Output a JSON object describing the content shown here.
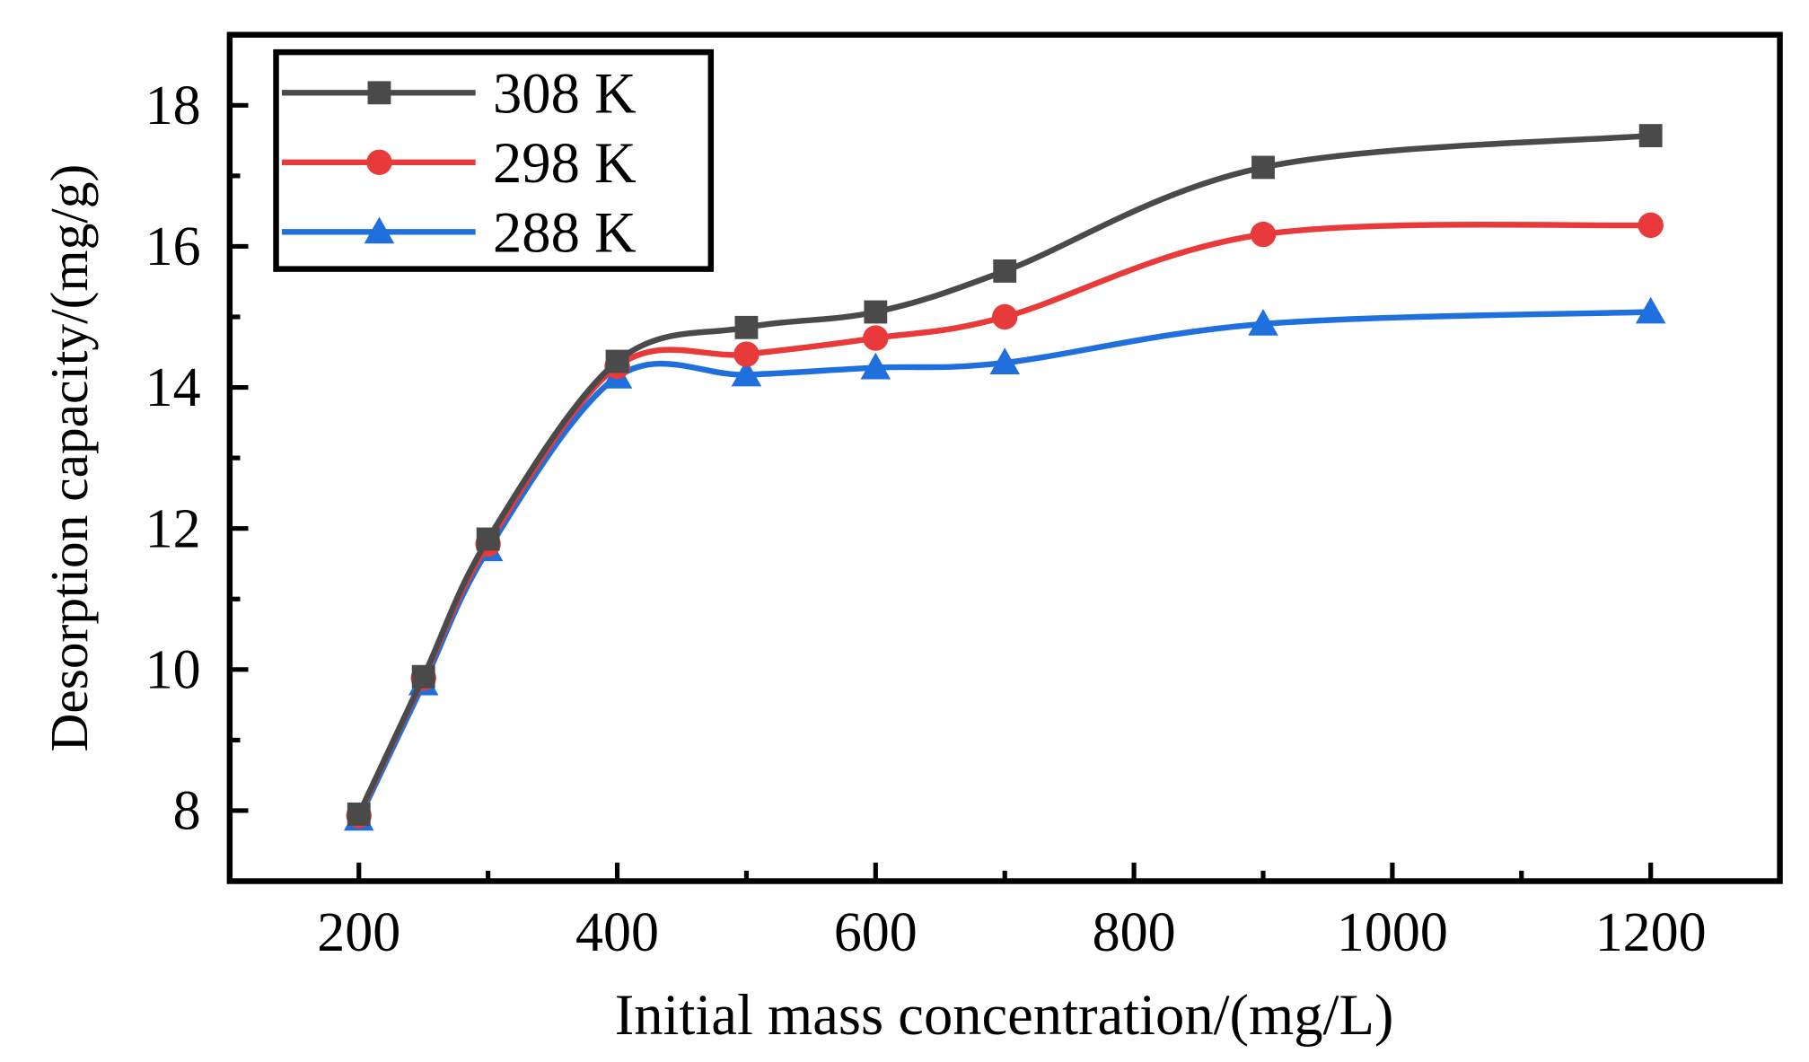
{
  "chart_data": {
    "type": "line",
    "title": "",
    "xlabel": "Initial mass concentration/(mg/L)",
    "ylabel": "Desorption capacity/(mg/g)",
    "xlim": [
      100,
      1300
    ],
    "ylim": [
      7,
      19
    ],
    "xticks": [
      200,
      400,
      600,
      800,
      1000,
      1200
    ],
    "yticks": [
      8,
      10,
      12,
      14,
      16,
      18
    ],
    "grid": false,
    "legend_position": "top-left",
    "x": [
      200,
      250,
      300,
      400,
      500,
      600,
      700,
      900,
      1200
    ],
    "series": [
      {
        "name": "308 K",
        "color": "#4a4a4a",
        "marker": "square",
        "values": [
          7.95,
          9.9,
          11.85,
          14.37,
          14.85,
          15.07,
          15.65,
          17.12,
          17.57
        ]
      },
      {
        "name": "298 K",
        "color": "#e83a3a",
        "marker": "circle",
        "values": [
          7.93,
          9.88,
          11.78,
          14.3,
          14.47,
          14.7,
          15.0,
          16.17,
          16.3
        ]
      },
      {
        "name": "288 K",
        "color": "#1f6fdc",
        "marker": "triangle",
        "values": [
          7.88,
          9.8,
          11.7,
          14.15,
          14.18,
          14.28,
          14.35,
          14.9,
          15.07
        ]
      }
    ]
  }
}
